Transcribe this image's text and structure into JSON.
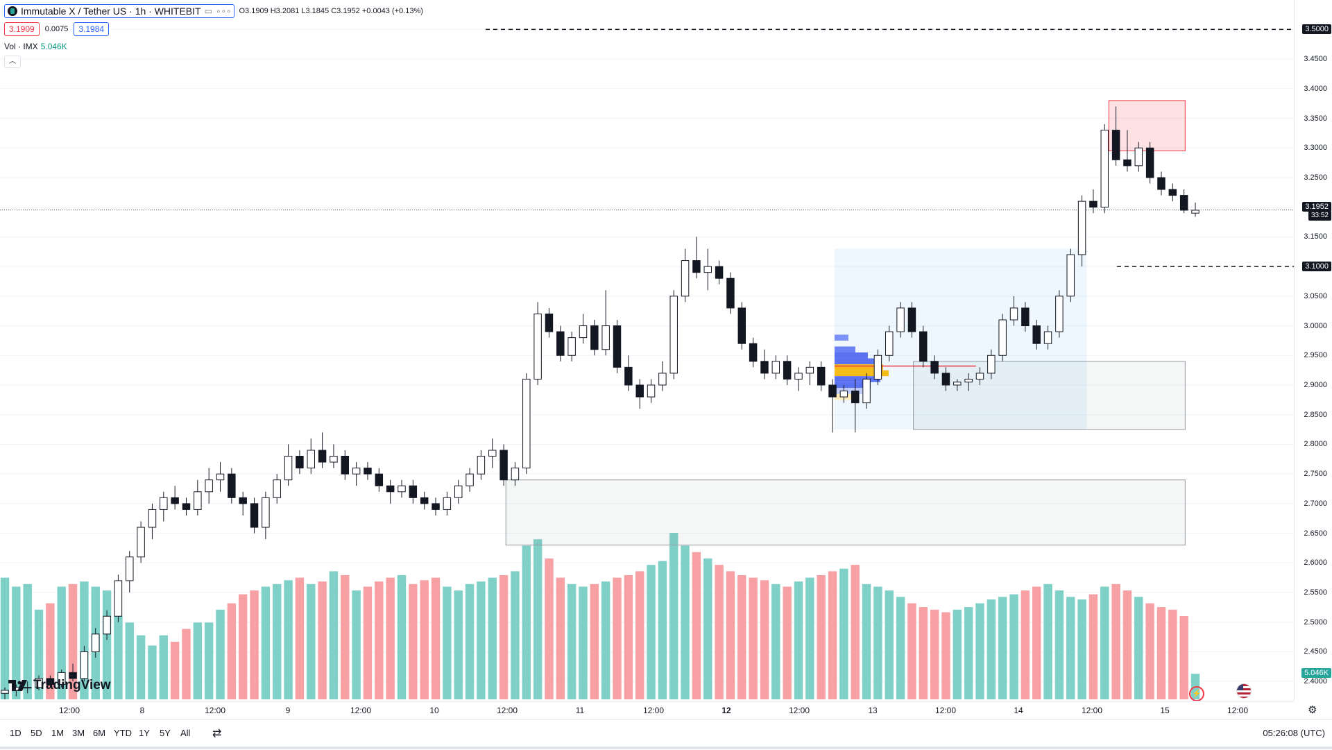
{
  "header": {
    "symbol_title": "Immutable X / Tether US · 1h · WHITEBIT",
    "ohlc": "O3.1909  H3.2081  L3.1845  C3.1952  +0.0043 (+0.13%)",
    "sell_price": "3.1909",
    "spread": "0.0075",
    "buy_price": "3.1984",
    "volume_label": "Vol · IMX",
    "volume_value": "5.046K",
    "collapse_icon": "chevron-up-icon"
  },
  "price_axis": {
    "ticks": [
      "3.5000",
      "3.4500",
      "3.4000",
      "3.3500",
      "3.3000",
      "3.2500",
      "3.2000",
      "3.1500",
      "3.1000",
      "3.0500",
      "3.0000",
      "2.9500",
      "2.9000",
      "2.8500",
      "2.8000",
      "2.7500",
      "2.7000",
      "2.6500",
      "2.6000",
      "2.5500",
      "2.5000",
      "2.4500",
      "2.4000"
    ],
    "current_price": "3.1952",
    "countdown": "33:52",
    "level_3_5": "3.5000",
    "level_3_1": "3.1000",
    "volume_tag": "5.046K"
  },
  "time_axis": [
    {
      "label": "12:00",
      "bold": false
    },
    {
      "label": "8",
      "bold": false
    },
    {
      "label": "12:00",
      "bold": false
    },
    {
      "label": "9",
      "bold": false
    },
    {
      "label": "12:00",
      "bold": false
    },
    {
      "label": "10",
      "bold": false
    },
    {
      "label": "12:00",
      "bold": false
    },
    {
      "label": "11",
      "bold": false
    },
    {
      "label": "12:00",
      "bold": false
    },
    {
      "label": "12",
      "bold": true
    },
    {
      "label": "12:00",
      "bold": false
    },
    {
      "label": "13",
      "bold": false
    },
    {
      "label": "12:00",
      "bold": false
    },
    {
      "label": "14",
      "bold": false
    },
    {
      "label": "12:00",
      "bold": false
    },
    {
      "label": "15",
      "bold": false
    },
    {
      "label": "12:00",
      "bold": false
    }
  ],
  "ranges": [
    "1D",
    "5D",
    "1M",
    "3M",
    "6M",
    "YTD",
    "1Y",
    "5Y",
    "All"
  ],
  "clock": "05:26:08 (UTC)",
  "brand": "TradingView",
  "colors": {
    "up": "#26a69a",
    "down": "#ef5350",
    "vol_up": "#7fd1c8",
    "vol_down": "#f7a1a5"
  },
  "chart_data": {
    "type": "candlestick",
    "price_range": [
      2.385,
      3.525
    ],
    "candles": [
      [
        2.38,
        2.39,
        2.37,
        2.385
      ],
      [
        2.385,
        2.395,
        2.375,
        2.39
      ],
      [
        2.39,
        2.4,
        2.38,
        2.39
      ],
      [
        2.39,
        2.41,
        2.385,
        2.405
      ],
      [
        2.405,
        2.41,
        2.39,
        2.395
      ],
      [
        2.395,
        2.42,
        2.39,
        2.415
      ],
      [
        2.415,
        2.43,
        2.4,
        2.405
      ],
      [
        2.405,
        2.46,
        2.4,
        2.45
      ],
      [
        2.45,
        2.49,
        2.44,
        2.48
      ],
      [
        2.48,
        2.52,
        2.47,
        2.51
      ],
      [
        2.51,
        2.58,
        2.5,
        2.57
      ],
      [
        2.57,
        2.62,
        2.55,
        2.61
      ],
      [
        2.61,
        2.67,
        2.6,
        2.66
      ],
      [
        2.66,
        2.7,
        2.64,
        2.69
      ],
      [
        2.69,
        2.72,
        2.67,
        2.71
      ],
      [
        2.71,
        2.73,
        2.69,
        2.7
      ],
      [
        2.7,
        2.71,
        2.68,
        2.69
      ],
      [
        2.69,
        2.74,
        2.68,
        2.72
      ],
      [
        2.72,
        2.76,
        2.7,
        2.74
      ],
      [
        2.74,
        2.77,
        2.72,
        2.75
      ],
      [
        2.75,
        2.76,
        2.7,
        2.71
      ],
      [
        2.71,
        2.72,
        2.68,
        2.7
      ],
      [
        2.7,
        2.71,
        2.65,
        2.66
      ],
      [
        2.66,
        2.72,
        2.64,
        2.71
      ],
      [
        2.71,
        2.75,
        2.7,
        2.74
      ],
      [
        2.74,
        2.8,
        2.73,
        2.78
      ],
      [
        2.78,
        2.79,
        2.75,
        2.76
      ],
      [
        2.76,
        2.81,
        2.75,
        2.79
      ],
      [
        2.79,
        2.82,
        2.76,
        2.77
      ],
      [
        2.77,
        2.8,
        2.76,
        2.78
      ],
      [
        2.78,
        2.79,
        2.74,
        2.75
      ],
      [
        2.75,
        2.77,
        2.73,
        2.76
      ],
      [
        2.76,
        2.77,
        2.74,
        2.75
      ],
      [
        2.75,
        2.76,
        2.72,
        2.73
      ],
      [
        2.73,
        2.74,
        2.7,
        2.72
      ],
      [
        2.72,
        2.74,
        2.71,
        2.73
      ],
      [
        2.73,
        2.74,
        2.7,
        2.71
      ],
      [
        2.71,
        2.72,
        2.69,
        2.7
      ],
      [
        2.7,
        2.71,
        2.68,
        2.69
      ],
      [
        2.69,
        2.72,
        2.68,
        2.71
      ],
      [
        2.71,
        2.74,
        2.7,
        2.73
      ],
      [
        2.73,
        2.76,
        2.72,
        2.75
      ],
      [
        2.75,
        2.79,
        2.74,
        2.78
      ],
      [
        2.78,
        2.81,
        2.76,
        2.79
      ],
      [
        2.79,
        2.8,
        2.73,
        2.74
      ],
      [
        2.74,
        2.77,
        2.73,
        2.76
      ],
      [
        2.76,
        2.92,
        2.75,
        2.91
      ],
      [
        2.91,
        3.04,
        2.9,
        3.02
      ],
      [
        3.02,
        3.03,
        2.98,
        2.99
      ],
      [
        2.99,
        3.0,
        2.94,
        2.95
      ],
      [
        2.95,
        2.99,
        2.94,
        2.98
      ],
      [
        2.98,
        3.02,
        2.97,
        3.0
      ],
      [
        3.0,
        3.01,
        2.95,
        2.96
      ],
      [
        2.96,
        3.06,
        2.95,
        3.0
      ],
      [
        3.0,
        3.01,
        2.92,
        2.93
      ],
      [
        2.93,
        2.95,
        2.89,
        2.9
      ],
      [
        2.9,
        2.91,
        2.86,
        2.88
      ],
      [
        2.88,
        2.91,
        2.87,
        2.9
      ],
      [
        2.9,
        2.94,
        2.89,
        2.92
      ],
      [
        2.92,
        3.06,
        2.91,
        3.05
      ],
      [
        3.05,
        3.13,
        3.04,
        3.11
      ],
      [
        3.11,
        3.15,
        3.08,
        3.09
      ],
      [
        3.09,
        3.13,
        3.06,
        3.1
      ],
      [
        3.1,
        3.11,
        3.07,
        3.08
      ],
      [
        3.08,
        3.09,
        3.02,
        3.03
      ],
      [
        3.03,
        3.04,
        2.96,
        2.97
      ],
      [
        2.97,
        2.98,
        2.93,
        2.94
      ],
      [
        2.94,
        2.96,
        2.91,
        2.92
      ],
      [
        2.92,
        2.95,
        2.91,
        2.94
      ],
      [
        2.94,
        2.95,
        2.9,
        2.91
      ],
      [
        2.91,
        2.93,
        2.89,
        2.92
      ],
      [
        2.92,
        2.94,
        2.9,
        2.93
      ],
      [
        2.93,
        2.94,
        2.89,
        2.9
      ],
      [
        2.9,
        2.91,
        2.82,
        2.88
      ],
      [
        2.88,
        2.9,
        2.87,
        2.89
      ],
      [
        2.89,
        2.91,
        2.82,
        2.87
      ],
      [
        2.87,
        2.92,
        2.86,
        2.91
      ],
      [
        2.91,
        2.96,
        2.9,
        2.95
      ],
      [
        2.95,
        3.0,
        2.94,
        2.99
      ],
      [
        2.99,
        3.04,
        2.98,
        3.03
      ],
      [
        3.03,
        3.04,
        2.98,
        2.99
      ],
      [
        2.99,
        3.0,
        2.93,
        2.94
      ],
      [
        2.94,
        2.95,
        2.91,
        2.92
      ],
      [
        2.92,
        2.93,
        2.89,
        2.9
      ],
      [
        2.9,
        2.91,
        2.89,
        2.905
      ],
      [
        2.905,
        2.92,
        2.89,
        2.91
      ],
      [
        2.91,
        2.93,
        2.9,
        2.92
      ],
      [
        2.92,
        2.96,
        2.91,
        2.95
      ],
      [
        2.95,
        3.02,
        2.94,
        3.01
      ],
      [
        3.01,
        3.05,
        3.0,
        3.03
      ],
      [
        3.03,
        3.04,
        2.99,
        3.0
      ],
      [
        3.0,
        3.01,
        2.96,
        2.97
      ],
      [
        2.97,
        3.0,
        2.96,
        2.99
      ],
      [
        2.99,
        3.06,
        2.98,
        3.05
      ],
      [
        3.05,
        3.13,
        3.04,
        3.12
      ],
      [
        3.12,
        3.22,
        3.1,
        3.21
      ],
      [
        3.21,
        3.23,
        3.19,
        3.2
      ],
      [
        3.2,
        3.34,
        3.19,
        3.33
      ],
      [
        3.33,
        3.37,
        3.27,
        3.28
      ],
      [
        3.28,
        3.33,
        3.26,
        3.27
      ],
      [
        3.27,
        3.31,
        3.26,
        3.3
      ],
      [
        3.3,
        3.31,
        3.24,
        3.25
      ],
      [
        3.25,
        3.26,
        3.22,
        3.23
      ],
      [
        3.23,
        3.24,
        3.21,
        3.22
      ],
      [
        3.22,
        3.23,
        3.19,
        3.195
      ],
      [
        3.19,
        3.208,
        3.184,
        3.195
      ]
    ],
    "volumes_relative": [
      0.95,
      0.88,
      0.9,
      0.7,
      0.75,
      0.88,
      0.9,
      0.92,
      0.88,
      0.85,
      0.65,
      0.6,
      0.5,
      0.42,
      0.5,
      0.45,
      0.55,
      0.6,
      0.6,
      0.7,
      0.75,
      0.82,
      0.85,
      0.88,
      0.9,
      0.93,
      0.95,
      0.9,
      0.92,
      1.0,
      0.97,
      0.85,
      0.88,
      0.92,
      0.95,
      0.97,
      0.9,
      0.93,
      0.95,
      0.88,
      0.85,
      0.9,
      0.92,
      0.95,
      0.97,
      1.0,
      1.2,
      1.25,
      1.1,
      0.95,
      0.9,
      0.88,
      0.9,
      0.92,
      0.95,
      0.97,
      1.0,
      1.05,
      1.08,
      1.3,
      1.2,
      1.15,
      1.1,
      1.05,
      1.0,
      0.97,
      0.95,
      0.93,
      0.9,
      0.88,
      0.92,
      0.95,
      0.97,
      1.0,
      1.02,
      1.05,
      0.9,
      0.88,
      0.85,
      0.8,
      0.75,
      0.72,
      0.7,
      0.68,
      0.7,
      0.72,
      0.75,
      0.78,
      0.8,
      0.82,
      0.85,
      0.88,
      0.9,
      0.85,
      0.8,
      0.78,
      0.82,
      0.88,
      0.9,
      0.85,
      0.8,
      0.75,
      0.72,
      0.7,
      0.65,
      0.2
    ],
    "levels": {
      "resistance_dashed": 3.5,
      "support_dashed": 3.1,
      "current_dotted": 3.1952
    },
    "zones": [
      {
        "kind": "supply",
        "x0": 0.857,
        "x1": 0.916,
        "y_high": 3.38,
        "y_low": 3.295
      },
      {
        "kind": "demand",
        "x0": 0.706,
        "x1": 0.916,
        "y_high": 2.94,
        "y_low": 2.825
      },
      {
        "kind": "demand",
        "x0": 0.391,
        "x1": 0.916,
        "y_high": 2.74,
        "y_low": 2.63
      },
      {
        "kind": "range",
        "x0": 0.645,
        "x1": 0.84,
        "y_high": 3.13,
        "y_low": 2.825
      }
    ]
  }
}
